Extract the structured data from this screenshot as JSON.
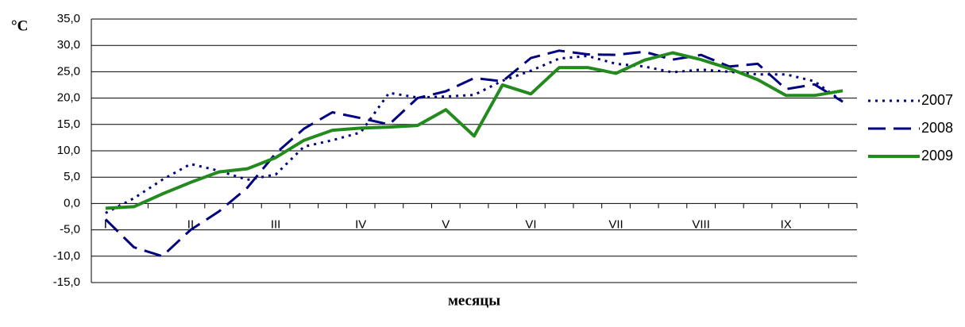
{
  "chart_data": {
    "type": "line",
    "ylabel": "°C",
    "xlabel": "месяцы",
    "categories": [
      "I",
      null,
      null,
      "II",
      null,
      null,
      "III",
      null,
      null,
      "IV",
      null,
      null,
      "V",
      null,
      null,
      "VI",
      null,
      null,
      "VII",
      null,
      null,
      "VIII",
      null,
      null,
      "IX",
      null,
      null
    ],
    "series": [
      {
        "name": "2007",
        "color": "#000080",
        "style": "dotted",
        "values": [
          -1.8,
          1.0,
          4.5,
          7.5,
          6.2,
          4.5,
          5.5,
          10.8,
          12.0,
          13.5,
          21.0,
          20.1,
          20.3,
          20.6,
          23.3,
          25.2,
          27.5,
          28.0,
          26.5,
          26.0,
          24.9,
          25.4,
          25.0,
          24.5,
          24.5,
          23.2,
          19.3
        ]
      },
      {
        "name": "2008",
        "color": "#000080",
        "style": "dashed",
        "values": [
          -3.0,
          -8.3,
          -10.0,
          -5.0,
          -1.5,
          3.0,
          9.5,
          14.2,
          17.3,
          16.2,
          15.0,
          20.0,
          21.3,
          23.8,
          23.2,
          27.6,
          29.0,
          28.3,
          28.2,
          28.8,
          27.3,
          28.2,
          26.0,
          26.5,
          21.7,
          22.6,
          19.3
        ]
      },
      {
        "name": "2009",
        "color": "#238a1e",
        "style": "solid",
        "values": [
          -0.9,
          -0.6,
          1.8,
          4.0,
          6.0,
          6.6,
          8.7,
          12.0,
          13.9,
          14.3,
          14.5,
          14.8,
          17.8,
          12.8,
          22.5,
          20.8,
          25.8,
          25.8,
          24.7,
          27.2,
          28.6,
          27.3,
          25.6,
          23.5,
          20.5,
          20.5,
          21.4
        ]
      }
    ],
    "ylim": [
      -15,
      35
    ],
    "yticks": [
      {
        "value": -15,
        "label": "-15,0"
      },
      {
        "value": -10,
        "label": "-10,0"
      },
      {
        "value": -5,
        "label": "-5,0"
      },
      {
        "value": 0,
        "label": "0,0"
      },
      {
        "value": 5,
        "label": "5,0"
      },
      {
        "value": 10,
        "label": "10,0"
      },
      {
        "value": 15,
        "label": "15,0"
      },
      {
        "value": 20,
        "label": "20,0"
      },
      {
        "value": 25,
        "label": "25,0"
      },
      {
        "value": 30,
        "label": "30,0"
      },
      {
        "value": 35,
        "label": "35,0"
      }
    ],
    "grid": true,
    "legend": "right"
  }
}
